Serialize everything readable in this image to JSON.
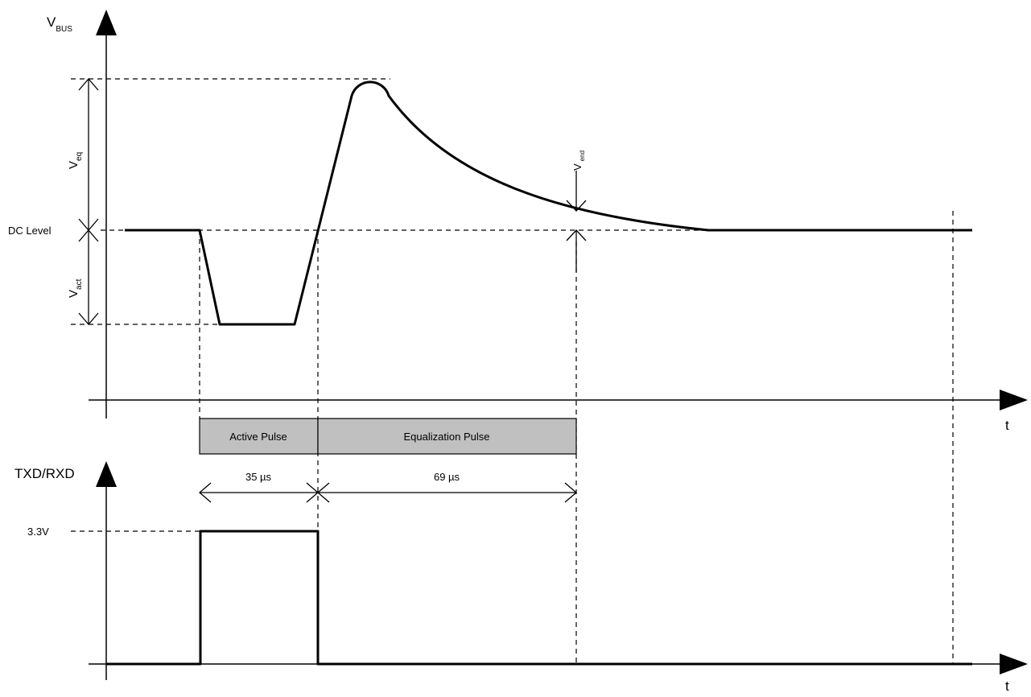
{
  "upper_axis": {
    "y_label_main": "V",
    "y_label_sub": "BUS",
    "x_label": "t"
  },
  "lower_axis": {
    "y_label": "TXD/RXD",
    "x_label": "t"
  },
  "levels": {
    "dc_level": "DC Level",
    "high_level": "3.3V"
  },
  "dimensions": {
    "v_eq_main": "V",
    "v_eq_sub": "eq",
    "v_act_main": "V",
    "v_act_sub": "act",
    "v_end_main": "V",
    "v_end_sub": "end"
  },
  "phases": {
    "active_label": "Active Pulse",
    "equalization_label": "Equalization Pulse",
    "active_duration": "35 µs",
    "equalization_duration": "69 µs"
  },
  "colors": {
    "phase_fill": "#c0c0c0",
    "line": "#000000",
    "background": "#ffffff"
  }
}
